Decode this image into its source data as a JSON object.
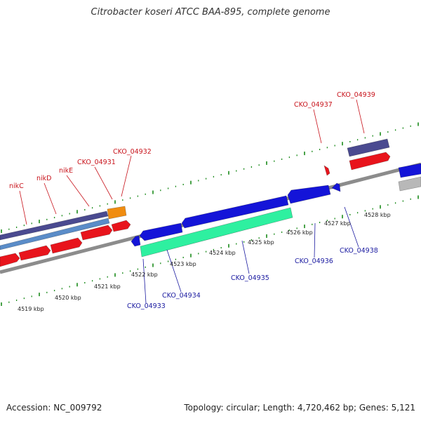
{
  "title": "Citrobacter koseri ATCC BAA-895, complete genome",
  "footer": {
    "accession": "Accession: NC_009792",
    "summary": "Topology: circular; Length: 4,720,462 bp; Genes: 5,121"
  },
  "colors": {
    "forward_gene": "#e8141c",
    "reverse_gene": "#1414d8",
    "rna_gene": "#2ef0a0",
    "misc_gene": "#f08c10",
    "pseudo_gene": "#b8b8b8",
    "region_dark": "#4a4a90",
    "region_light": "#5a8cc8",
    "backbone": "#8c8c8c",
    "tick": "#1a8a1a",
    "forward_label": "#c8141c",
    "reverse_label": "#1a1aa0"
  },
  "ruler": {
    "labels": [
      "4519 kbp",
      "4520 kbp",
      "4521 kbp",
      "4522 kbp",
      "4523 kbp",
      "4524 kbp",
      "4525 kbp",
      "4526 kbp",
      "4527 kbp",
      "4528 kbp"
    ]
  },
  "gene_labels": {
    "forward": [
      "nikC",
      "nikD",
      "nikE",
      "CKO_04931",
      "CKO_04932",
      "CKO_04937",
      "CKO_04939"
    ],
    "reverse": [
      "CKO_04933",
      "CKO_04934",
      "CKO_04935",
      "CKO_04936",
      "CKO_04938"
    ]
  }
}
